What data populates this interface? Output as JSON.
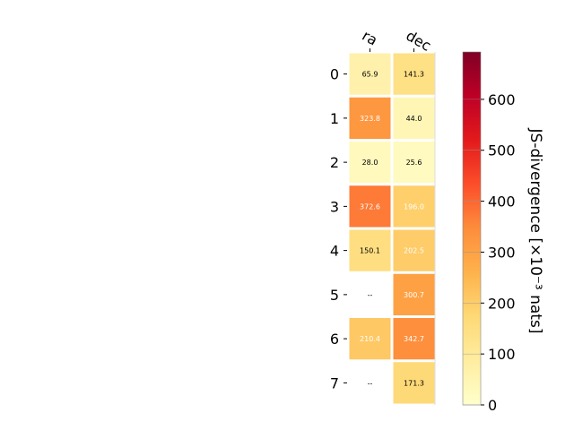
{
  "chart_data": {
    "type": "heatmap",
    "columns": [
      "ra",
      "dec"
    ],
    "rows": [
      "0",
      "1",
      "2",
      "3",
      "4",
      "5",
      "6",
      "7"
    ],
    "values": [
      [
        65.9,
        141.3
      ],
      [
        323.8,
        44.0
      ],
      [
        28.0,
        25.6
      ],
      [
        372.6,
        196.0
      ],
      [
        150.1,
        202.5
      ],
      [
        null,
        300.7
      ],
      [
        210.4,
        342.7
      ],
      [
        null,
        171.3
      ]
    ],
    "cell_labels": [
      [
        "65.9",
        "141.3"
      ],
      [
        "323.8",
        "44.0"
      ],
      [
        "28.0",
        "25.6"
      ],
      [
        "372.6",
        "196.0"
      ],
      [
        "150.1",
        "202.5"
      ],
      [
        "--",
        "300.7"
      ],
      [
        "210.4",
        "342.7"
      ],
      [
        "--",
        "171.3"
      ]
    ],
    "colormap": "YlOrRd",
    "colorbar": {
      "label": "JS-divergence [×10⁻³ nats]",
      "range": [
        0,
        693
      ],
      "ticks": [
        0,
        100,
        200,
        300,
        400,
        500,
        600
      ]
    }
  }
}
